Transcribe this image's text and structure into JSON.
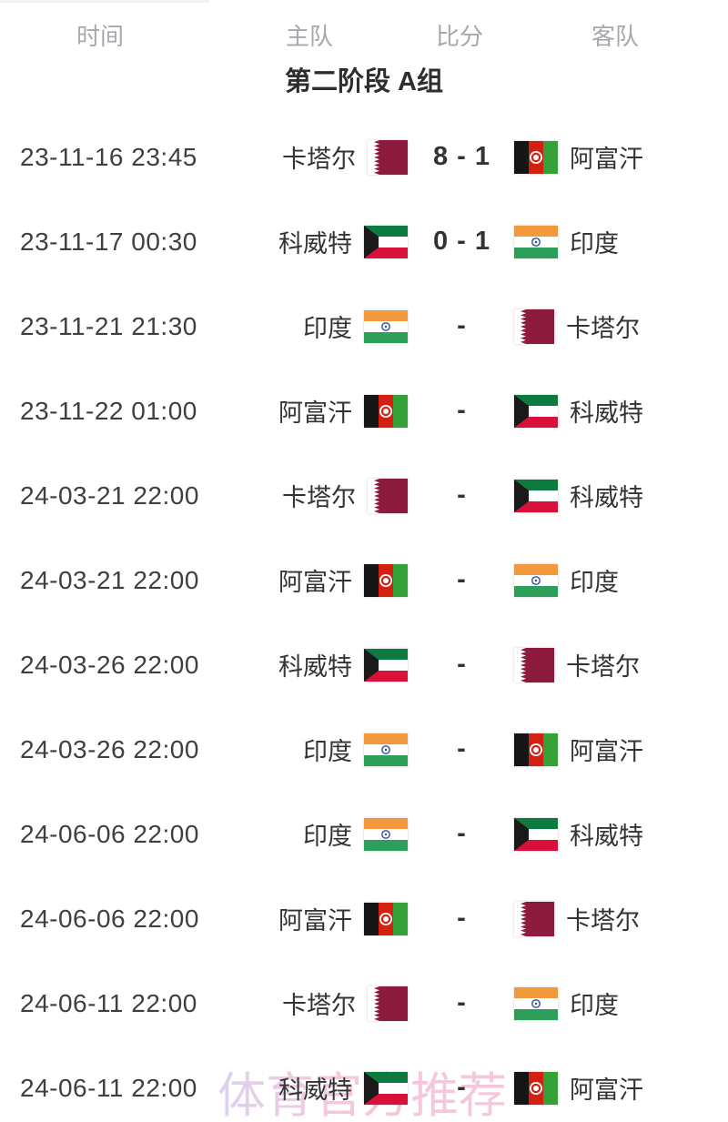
{
  "table": {
    "columns": [
      "时间",
      "主队",
      "比分",
      "客队"
    ],
    "group_title": "第二阶段 A组",
    "rows": [
      {
        "time": "23-11-16 23:45",
        "home": "卡塔尔",
        "home_flag": "qatar",
        "score": "8 - 1",
        "away": "阿富汗",
        "away_flag": "afghanistan"
      },
      {
        "time": "23-11-17 00:30",
        "home": "科威特",
        "home_flag": "kuwait",
        "score": "0 - 1",
        "away": "印度",
        "away_flag": "india"
      },
      {
        "time": "23-11-21 21:30",
        "home": "印度",
        "home_flag": "india",
        "score": "-",
        "away": "卡塔尔",
        "away_flag": "qatar"
      },
      {
        "time": "23-11-22 01:00",
        "home": "阿富汗",
        "home_flag": "afghanistan",
        "score": "-",
        "away": "科威特",
        "away_flag": "kuwait"
      },
      {
        "time": "24-03-21 22:00",
        "home": "卡塔尔",
        "home_flag": "qatar",
        "score": "-",
        "away": "科威特",
        "away_flag": "kuwait"
      },
      {
        "time": "24-03-21 22:00",
        "home": "阿富汗",
        "home_flag": "afghanistan",
        "score": "-",
        "away": "印度",
        "away_flag": "india"
      },
      {
        "time": "24-03-26 22:00",
        "home": "科威特",
        "home_flag": "kuwait",
        "score": "-",
        "away": "卡塔尔",
        "away_flag": "qatar"
      },
      {
        "time": "24-03-26 22:00",
        "home": "印度",
        "home_flag": "india",
        "score": "-",
        "away": "阿富汗",
        "away_flag": "afghanistan"
      },
      {
        "time": "24-06-06 22:00",
        "home": "印度",
        "home_flag": "india",
        "score": "-",
        "away": "科威特",
        "away_flag": "kuwait"
      },
      {
        "time": "24-06-06 22:00",
        "home": "阿富汗",
        "home_flag": "afghanistan",
        "score": "-",
        "away": "卡塔尔",
        "away_flag": "qatar"
      },
      {
        "time": "24-06-11 22:00",
        "home": "卡塔尔",
        "home_flag": "qatar",
        "score": "-",
        "away": "印度",
        "away_flag": "india"
      },
      {
        "time": "24-06-11 22:00",
        "home": "科威特",
        "home_flag": "kuwait",
        "score": "-",
        "away": "阿富汗",
        "away_flag": "afghanistan"
      }
    ]
  },
  "watermark": {
    "text": "体育官方推荐"
  },
  "colors": {
    "qatar_maroon": "#8d1b3d",
    "afghanistan_red": "#d32011",
    "afghanistan_green": "#34a037",
    "kuwait_green": "#0d7a3f",
    "kuwait_red": "#d9113a",
    "india_saffron": "#f2993e",
    "india_green": "#2e9e5b",
    "body_text": "#333333",
    "header_text": "#a7a7ad",
    "watermark_pink": "#f2a6c8",
    "watermark_lavender": "#c9b5e6"
  }
}
